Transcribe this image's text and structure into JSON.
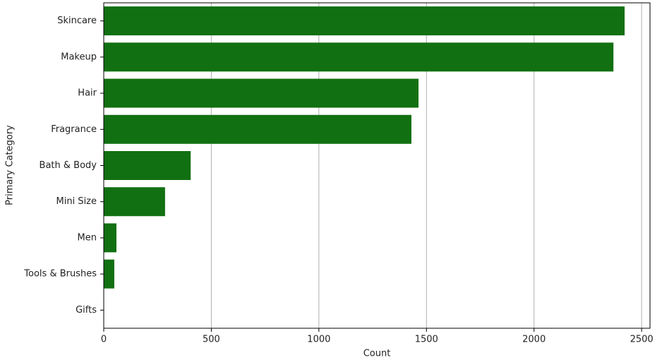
{
  "chart_data": {
    "type": "bar",
    "orientation": "horizontal",
    "categories": [
      "Skincare",
      "Makeup",
      "Hair",
      "Fragrance",
      "Bath & Body",
      "Mini Size",
      "Men",
      "Tools & Brushes",
      "Gifts"
    ],
    "values": [
      2421,
      2369,
      1463,
      1430,
      404,
      285,
      59,
      49,
      0
    ],
    "color": "#117011",
    "xlabel": "Count",
    "ylabel": "Primary Category",
    "xlim": [
      0,
      2539
    ],
    "xticks": [
      0,
      500,
      1000,
      1500,
      2000,
      2500
    ],
    "grid": true
  }
}
